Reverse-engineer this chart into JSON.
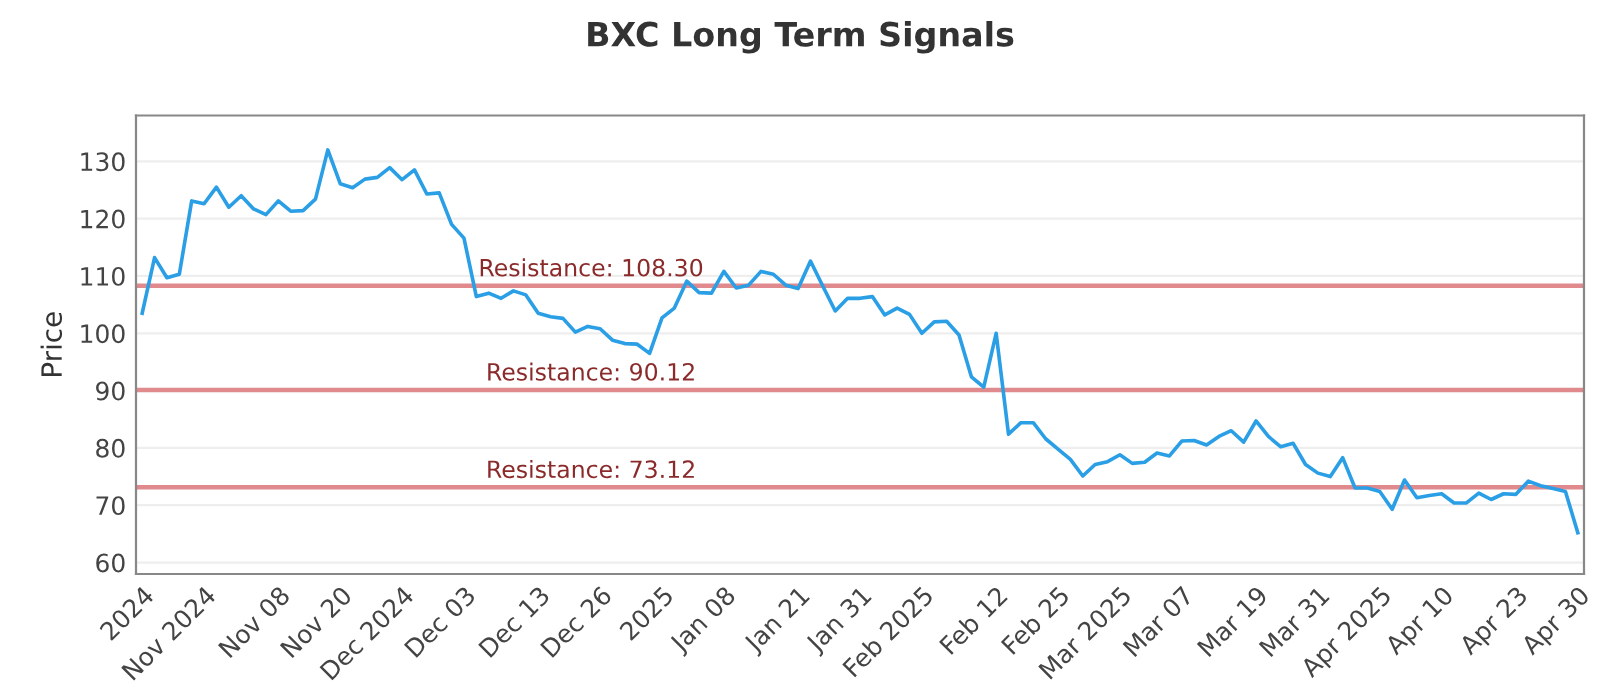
{
  "chart_data": {
    "type": "line",
    "title": "BXC Long Term Signals",
    "ylabel": "Price",
    "categories": [
      "2024",
      null,
      null,
      null,
      null,
      "Nov 2024",
      null,
      null,
      null,
      null,
      null,
      "Nov 08",
      null,
      null,
      null,
      null,
      "Nov 20",
      null,
      null,
      null,
      null,
      "Dec 2024",
      null,
      null,
      null,
      null,
      "Dec 03",
      null,
      null,
      null,
      null,
      null,
      "Dec 13",
      null,
      null,
      null,
      null,
      "Dec 26",
      null,
      null,
      null,
      null,
      "2025",
      null,
      null,
      null,
      null,
      "Jan 08",
      null,
      null,
      null,
      null,
      null,
      "Jan 21",
      null,
      null,
      null,
      null,
      "Jan 31",
      null,
      null,
      null,
      null,
      "Feb 2025",
      null,
      null,
      null,
      null,
      null,
      "Feb 12",
      null,
      null,
      null,
      null,
      "Feb 25",
      null,
      null,
      null,
      null,
      "Mar 2025",
      null,
      null,
      null,
      null,
      "Mar 07",
      null,
      null,
      null,
      null,
      null,
      "Mar 19",
      null,
      null,
      null,
      null,
      "Mar 31",
      null,
      null,
      null,
      null,
      "Apr 2025",
      null,
      null,
      null,
      null,
      "Apr 10",
      null,
      null,
      null,
      null,
      null,
      "Apr 23",
      null,
      null,
      null,
      null,
      "Apr 30"
    ],
    "series": [
      {
        "color": "#2b9fe6",
        "values": [
          103.5,
          113.2,
          109.7,
          110.3,
          123.1,
          122.6,
          125.5,
          122,
          124,
          121.7,
          120.7,
          123.1,
          121.3,
          121.4,
          123.4,
          132,
          126.1,
          125.4,
          126.9,
          127.2,
          128.9,
          126.8,
          128.5,
          124.3,
          124.5,
          119,
          116.6,
          106.4,
          107,
          106.1,
          107.4,
          106.7,
          103.5,
          102.9,
          102.6,
          100.2,
          101.2,
          100.8,
          98.8,
          98.2,
          98.1,
          96.5,
          102.7,
          104.4,
          109.1,
          107.1,
          107,
          110.8,
          107.9,
          108.4,
          110.8,
          110.3,
          108.4,
          107.8,
          112.6,
          108.2,
          103.9,
          106.1,
          106.1,
          106.4,
          103.2,
          104.4,
          103.3,
          100,
          102,
          102.1,
          99.7,
          92.4,
          90.6,
          100,
          82.4,
          84.4,
          84.4,
          81.6,
          79.8,
          78,
          75.1,
          77.1,
          77.6,
          78.8,
          77.3,
          77.5,
          79.1,
          78.6,
          81.2,
          81.3,
          80.5,
          82,
          83,
          81,
          84.7,
          82,
          80.2,
          80.8,
          77.1,
          75.6,
          75,
          78.3,
          73,
          73,
          72.4,
          69.3,
          74.4,
          71.3,
          71.7,
          72,
          70.4,
          70.4,
          72.1,
          71,
          72,
          71.9,
          74.2,
          73.4,
          72.9,
          72.4,
          65.2
        ]
      }
    ],
    "ylim": [
      58,
      138
    ],
    "yticks": [
      60,
      70,
      80,
      90,
      100,
      110,
      120,
      130
    ],
    "grid": "y",
    "legend": false,
    "marker": "none",
    "line_style": "solid",
    "ref_lines": [
      {
        "axis": "y",
        "value": 108.3,
        "label": "Resistance: 108.30",
        "color": "#e08a8e"
      },
      {
        "axis": "y",
        "value": 90.12,
        "label": "Resistance: 90.12",
        "color": "#e08a8e"
      },
      {
        "axis": "y",
        "value": 73.12,
        "label": "Resistance: 73.12",
        "color": "#e08a8e"
      }
    ]
  }
}
